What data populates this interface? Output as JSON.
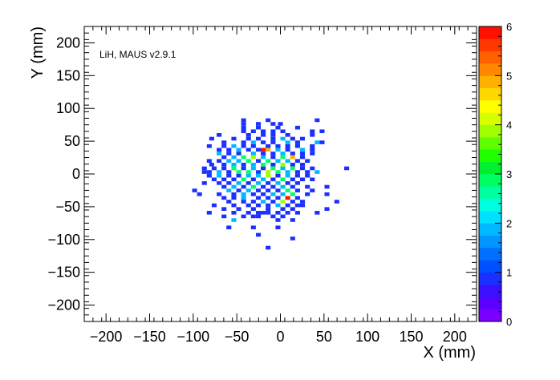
{
  "chart_data": {
    "type": "heatmap",
    "annotation": "LiH, MAUS v2.9.1",
    "xlabel": "X (mm)",
    "ylabel": "Y (mm)",
    "xlim": [
      -225,
      225
    ],
    "ylim": [
      -225,
      225
    ],
    "bin_size": 5.625,
    "x_ticks": [
      -200,
      -150,
      -100,
      -50,
      0,
      50,
      100,
      150,
      200
    ],
    "x_tick_labels": [
      "−200",
      "−150",
      "−100",
      "−50",
      "0",
      "50",
      "100",
      "150",
      "200"
    ],
    "y_ticks": [
      -200,
      -150,
      -100,
      -50,
      0,
      50,
      100,
      150,
      200
    ],
    "y_tick_labels": [
      "−200",
      "−150",
      "−100",
      "−50",
      "0",
      "50",
      "100",
      "150",
      "200"
    ],
    "colorbar": {
      "min": 0,
      "max": 6,
      "ticks": [
        0,
        1,
        2,
        3,
        4,
        5,
        6
      ],
      "tick_labels": [
        "0",
        "1",
        "2",
        "3",
        "4",
        "5",
        "6"
      ],
      "colors": [
        "#7a00ff",
        "#5a00ff",
        "#3a10ff",
        "#1a30ff",
        "#0050ff",
        "#0070ff",
        "#0095ff",
        "#00b8ff",
        "#00e0ff",
        "#00ffe0",
        "#00ffa0",
        "#00ff60",
        "#00f030",
        "#20ff00",
        "#60ff00",
        "#a0ff00",
        "#d8ff00",
        "#ffff00",
        "#ffd800",
        "#ffb000",
        "#ff8800",
        "#ff6000",
        "#ff3800",
        "#ff1000"
      ]
    },
    "points": [
      [
        -42.2,
        82.0,
        1
      ],
      [
        -14.1,
        82.0,
        1
      ],
      [
        42.2,
        82.0,
        1
      ],
      [
        -42.2,
        76.4,
        1
      ],
      [
        -25.3,
        76.4,
        1
      ],
      [
        -8.4,
        76.4,
        1
      ],
      [
        0,
        76.4,
        1
      ],
      [
        -42.2,
        70.7,
        1
      ],
      [
        -25.3,
        70.7,
        1
      ],
      [
        -2.8,
        70.7,
        1
      ],
      [
        19.7,
        70.7,
        1
      ],
      [
        -42.2,
        65.1,
        1
      ],
      [
        -31.0,
        65.1,
        1
      ],
      [
        -19.7,
        65.1,
        1
      ],
      [
        -8.4,
        65.1,
        1
      ],
      [
        2.8,
        65.1,
        1
      ],
      [
        36.6,
        65.1,
        1
      ],
      [
        47.8,
        65.1,
        1
      ],
      [
        -70.3,
        59.5,
        1
      ],
      [
        -36.6,
        59.5,
        1
      ],
      [
        -19.7,
        59.5,
        1
      ],
      [
        -8.4,
        59.5,
        1
      ],
      [
        8.4,
        59.5,
        1
      ],
      [
        36.6,
        59.5,
        1
      ],
      [
        -78.8,
        53.8,
        1
      ],
      [
        -53.4,
        53.8,
        1
      ],
      [
        -36.6,
        53.8,
        1
      ],
      [
        -25.3,
        53.8,
        1
      ],
      [
        -8.4,
        53.8,
        1
      ],
      [
        2.8,
        53.8,
        2
      ],
      [
        14.1,
        53.8,
        1
      ],
      [
        25.3,
        53.8,
        1
      ],
      [
        -64.7,
        48.2,
        1
      ],
      [
        -42.2,
        48.2,
        1
      ],
      [
        -31.0,
        48.2,
        2
      ],
      [
        -19.7,
        48.2,
        1
      ],
      [
        -8.4,
        48.2,
        1
      ],
      [
        8.4,
        48.2,
        2
      ],
      [
        19.7,
        48.2,
        1
      ],
      [
        42.2,
        48.2,
        2
      ],
      [
        47.8,
        48.2,
        1
      ],
      [
        -81.6,
        42.5,
        1
      ],
      [
        -64.7,
        42.5,
        1
      ],
      [
        -53.4,
        42.5,
        2
      ],
      [
        -42.2,
        42.5,
        1
      ],
      [
        -31.0,
        42.5,
        1
      ],
      [
        -14.1,
        42.5,
        1
      ],
      [
        -2.8,
        42.5,
        1
      ],
      [
        8.4,
        42.5,
        1
      ],
      [
        19.7,
        42.5,
        1
      ],
      [
        36.6,
        42.5,
        1
      ],
      [
        -70.3,
        36.9,
        1
      ],
      [
        -59.1,
        36.9,
        1
      ],
      [
        -47.8,
        36.9,
        2
      ],
      [
        -36.6,
        36.9,
        1
      ],
      [
        -25.3,
        36.9,
        1
      ],
      [
        -19.7,
        36.9,
        6
      ],
      [
        -14.1,
        36.9,
        5
      ],
      [
        -2.8,
        36.9,
        2
      ],
      [
        8.4,
        36.9,
        1
      ],
      [
        25.3,
        36.9,
        2
      ],
      [
        36.6,
        36.9,
        1
      ],
      [
        -70.3,
        31.2,
        2
      ],
      [
        -59.1,
        31.2,
        1
      ],
      [
        -47.8,
        31.2,
        1
      ],
      [
        -31.0,
        31.2,
        2
      ],
      [
        -19.7,
        31.2,
        1
      ],
      [
        -8.4,
        31.2,
        1
      ],
      [
        2.8,
        31.2,
        2
      ],
      [
        14.1,
        31.2,
        1
      ],
      [
        25.3,
        31.2,
        1
      ],
      [
        36.6,
        31.2,
        1
      ],
      [
        -64.7,
        25.6,
        1
      ],
      [
        -53.4,
        25.6,
        2
      ],
      [
        -42.2,
        25.6,
        3
      ],
      [
        -31.0,
        25.6,
        4
      ],
      [
        -19.7,
        25.6,
        2
      ],
      [
        -8.4,
        25.6,
        1
      ],
      [
        2.8,
        25.6,
        3
      ],
      [
        14.1,
        25.6,
        5
      ],
      [
        25.3,
        25.6,
        1
      ],
      [
        -81.6,
        19.9,
        1
      ],
      [
        -70.3,
        19.9,
        1
      ],
      [
        -59.1,
        19.9,
        2
      ],
      [
        -47.8,
        19.9,
        2
      ],
      [
        -36.6,
        19.9,
        3
      ],
      [
        -25.3,
        19.9,
        1
      ],
      [
        -14.1,
        19.9,
        3
      ],
      [
        -2.8,
        19.9,
        2
      ],
      [
        8.4,
        19.9,
        2
      ],
      [
        19.7,
        19.9,
        1
      ],
      [
        31.0,
        19.9,
        1
      ],
      [
        -78.8,
        14.3,
        1
      ],
      [
        -64.7,
        14.3,
        1
      ],
      [
        -53.4,
        14.3,
        2
      ],
      [
        -42.2,
        14.3,
        1
      ],
      [
        -31.0,
        14.3,
        2
      ],
      [
        -19.7,
        14.3,
        3
      ],
      [
        -8.4,
        14.3,
        1
      ],
      [
        2.8,
        14.3,
        4
      ],
      [
        14.1,
        14.3,
        1
      ],
      [
        25.3,
        14.3,
        1
      ],
      [
        -87.2,
        8.6,
        1
      ],
      [
        -76.0,
        8.6,
        1
      ],
      [
        -64.7,
        8.6,
        1
      ],
      [
        -53.4,
        8.6,
        3
      ],
      [
        -42.2,
        8.6,
        1
      ],
      [
        -31.0,
        8.6,
        2
      ],
      [
        -19.7,
        8.6,
        1
      ],
      [
        -8.4,
        8.6,
        3
      ],
      [
        2.8,
        8.6,
        2
      ],
      [
        14.1,
        8.6,
        3
      ],
      [
        25.3,
        8.6,
        1
      ],
      [
        36.6,
        8.6,
        1
      ],
      [
        76.0,
        8.6,
        1
      ],
      [
        -87.2,
        3.0,
        1
      ],
      [
        -81.6,
        3.0,
        1
      ],
      [
        -70.3,
        3.0,
        2
      ],
      [
        -59.1,
        3.0,
        1
      ],
      [
        -47.8,
        3.0,
        3
      ],
      [
        -36.6,
        3.0,
        3
      ],
      [
        -25.3,
        3.0,
        1
      ],
      [
        -14.1,
        3.0,
        4
      ],
      [
        -2.8,
        3.0,
        3
      ],
      [
        8.4,
        3.0,
        2
      ],
      [
        19.7,
        3.0,
        1
      ],
      [
        31.0,
        3.0,
        1
      ],
      [
        42.2,
        3.0,
        2
      ],
      [
        -81.6,
        -2.6,
        1
      ],
      [
        -70.3,
        -2.6,
        2
      ],
      [
        -59.1,
        -2.6,
        1
      ],
      [
        -47.8,
        -2.6,
        1
      ],
      [
        -36.6,
        -2.6,
        2
      ],
      [
        -25.3,
        -2.6,
        2
      ],
      [
        -14.1,
        -2.6,
        4
      ],
      [
        -2.8,
        -2.6,
        1
      ],
      [
        8.4,
        -2.6,
        2
      ],
      [
        19.7,
        -2.6,
        1
      ],
      [
        31.0,
        -2.6,
        1
      ],
      [
        -76.0,
        -8.3,
        1
      ],
      [
        -64.7,
        -8.3,
        1
      ],
      [
        -53.4,
        -8.3,
        1
      ],
      [
        -42.2,
        -8.3,
        3
      ],
      [
        -31.0,
        -8.3,
        1
      ],
      [
        -19.7,
        -8.3,
        2
      ],
      [
        -8.4,
        -8.3,
        1
      ],
      [
        2.8,
        -8.3,
        3
      ],
      [
        14.1,
        -8.3,
        1
      ],
      [
        25.3,
        -8.3,
        1
      ],
      [
        36.6,
        -8.3,
        1
      ],
      [
        -87.2,
        -13.9,
        1
      ],
      [
        -70.3,
        -13.9,
        1
      ],
      [
        -59.1,
        -13.9,
        1
      ],
      [
        -47.8,
        -13.9,
        2
      ],
      [
        -36.6,
        -13.9,
        1
      ],
      [
        -25.3,
        -13.9,
        2
      ],
      [
        -14.1,
        -13.9,
        1
      ],
      [
        -2.8,
        -13.9,
        2
      ],
      [
        8.4,
        -13.9,
        1
      ],
      [
        19.7,
        -13.9,
        1
      ],
      [
        -64.7,
        -19.6,
        1
      ],
      [
        -53.4,
        -19.6,
        2
      ],
      [
        -42.2,
        -19.6,
        1
      ],
      [
        -31.0,
        -19.6,
        3
      ],
      [
        -19.7,
        -19.6,
        1
      ],
      [
        -8.4,
        -19.6,
        1
      ],
      [
        2.8,
        -19.6,
        2
      ],
      [
        14.1,
        -19.6,
        1
      ],
      [
        31.0,
        -19.6,
        1
      ],
      [
        53.4,
        -19.6,
        1
      ],
      [
        -98.4,
        -25.2,
        1
      ],
      [
        -59.1,
        -25.2,
        2
      ],
      [
        -47.8,
        -25.2,
        1
      ],
      [
        -36.6,
        -25.2,
        2
      ],
      [
        -25.3,
        -25.2,
        1
      ],
      [
        -14.1,
        -25.2,
        1
      ],
      [
        -2.8,
        -25.2,
        1
      ],
      [
        8.4,
        -25.2,
        3
      ],
      [
        19.7,
        -25.2,
        1
      ],
      [
        36.6,
        -25.2,
        1
      ],
      [
        -92.8,
        -30.9,
        1
      ],
      [
        -70.3,
        -30.9,
        1
      ],
      [
        -53.4,
        -30.9,
        1
      ],
      [
        -42.2,
        -30.9,
        2
      ],
      [
        -31.0,
        -30.9,
        1
      ],
      [
        -19.7,
        -30.9,
        1
      ],
      [
        -8.4,
        -30.9,
        2
      ],
      [
        2.8,
        -30.9,
        2
      ],
      [
        14.1,
        -30.9,
        3
      ],
      [
        31.0,
        -30.9,
        1
      ],
      [
        53.4,
        -30.9,
        1
      ],
      [
        -64.7,
        -36.5,
        1
      ],
      [
        -53.4,
        -36.5,
        1
      ],
      [
        -42.2,
        -36.5,
        2
      ],
      [
        -25.3,
        -36.5,
        1
      ],
      [
        -14.1,
        -36.5,
        1
      ],
      [
        -2.8,
        -36.5,
        1
      ],
      [
        8.4,
        -36.5,
        6
      ],
      [
        19.7,
        -36.5,
        1
      ],
      [
        -59.1,
        -42.2,
        1
      ],
      [
        -42.2,
        -42.2,
        1
      ],
      [
        -31.0,
        -42.2,
        1
      ],
      [
        -19.7,
        -42.2,
        2
      ],
      [
        -8.4,
        -42.2,
        1
      ],
      [
        2.8,
        -42.2,
        4
      ],
      [
        14.1,
        -42.2,
        1
      ],
      [
        25.3,
        -42.2,
        1
      ],
      [
        64.7,
        -42.2,
        1
      ],
      [
        -76.0,
        -47.8,
        1
      ],
      [
        -53.4,
        -47.8,
        1
      ],
      [
        -36.6,
        -47.8,
        1
      ],
      [
        -25.3,
        -47.8,
        1
      ],
      [
        -14.1,
        -47.8,
        1
      ],
      [
        -2.8,
        -47.8,
        2
      ],
      [
        8.4,
        -47.8,
        1
      ],
      [
        19.7,
        -47.8,
        1
      ],
      [
        25.3,
        -47.8,
        1
      ],
      [
        -64.7,
        -53.4,
        1
      ],
      [
        -47.8,
        -53.4,
        1
      ],
      [
        -31.0,
        -53.4,
        1
      ],
      [
        -14.1,
        -53.4,
        1
      ],
      [
        2.8,
        -53.4,
        1
      ],
      [
        14.1,
        -53.4,
        1
      ],
      [
        53.4,
        -53.4,
        1
      ],
      [
        -81.6,
        -59.1,
        1
      ],
      [
        -53.4,
        -59.1,
        1
      ],
      [
        -36.6,
        -59.1,
        1
      ],
      [
        -25.3,
        -59.1,
        1
      ],
      [
        -19.7,
        -59.1,
        1
      ],
      [
        -14.1,
        -59.1,
        1
      ],
      [
        -2.8,
        -59.1,
        1
      ],
      [
        8.4,
        -59.1,
        1
      ],
      [
        19.7,
        -59.1,
        1
      ],
      [
        42.2,
        -59.1,
        1
      ],
      [
        -64.7,
        -64.7,
        1
      ],
      [
        -42.2,
        -64.7,
        1
      ],
      [
        -31.0,
        -64.7,
        1
      ],
      [
        -25.3,
        -64.7,
        1
      ],
      [
        -8.4,
        -64.7,
        1
      ],
      [
        2.8,
        -64.7,
        1
      ],
      [
        -53.4,
        -70.3,
        2
      ],
      [
        -2.8,
        -70.3,
        1
      ],
      [
        14.1,
        -70.3,
        1
      ],
      [
        -59.1,
        -81.6,
        1
      ],
      [
        -31.0,
        -81.6,
        1
      ],
      [
        -2.8,
        -81.6,
        1
      ],
      [
        -25.3,
        -92.8,
        1
      ],
      [
        14.1,
        -98.4,
        1
      ],
      [
        -14.1,
        -112.5,
        1
      ]
    ]
  }
}
